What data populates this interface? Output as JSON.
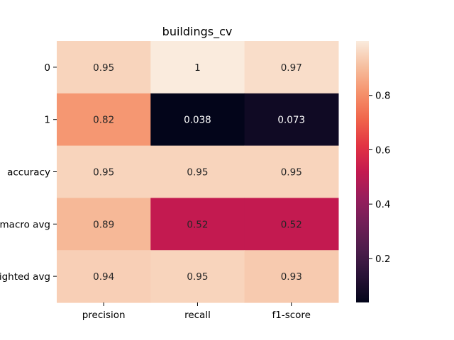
{
  "chart_data": {
    "type": "heatmap",
    "title": "buildings_cv",
    "xlabel": "",
    "ylabel": "",
    "x_categories": [
      "precision",
      "recall",
      "f1-score"
    ],
    "y_categories": [
      "0",
      "1",
      "accuracy",
      "macro avg",
      "weighted avg"
    ],
    "values": [
      [
        0.95,
        1.0,
        0.97
      ],
      [
        0.82,
        0.038,
        0.073
      ],
      [
        0.95,
        0.95,
        0.95
      ],
      [
        0.89,
        0.52,
        0.52
      ],
      [
        0.94,
        0.95,
        0.93
      ]
    ],
    "annotations": [
      [
        "0.95",
        "1",
        "0.97"
      ],
      [
        "0.82",
        "0.038",
        "0.073"
      ],
      [
        "0.95",
        "0.95",
        "0.95"
      ],
      [
        "0.89",
        "0.52",
        "0.52"
      ],
      [
        "0.94",
        "0.95",
        "0.93"
      ]
    ],
    "colormap": "rocket",
    "colorbar": {
      "min": 0.038,
      "max": 1.0,
      "ticks": [
        0.2,
        0.4,
        0.6,
        0.8
      ],
      "tick_labels": [
        "0.2",
        "0.4",
        "0.6",
        "0.8"
      ]
    },
    "legend": "colorbar-right"
  }
}
